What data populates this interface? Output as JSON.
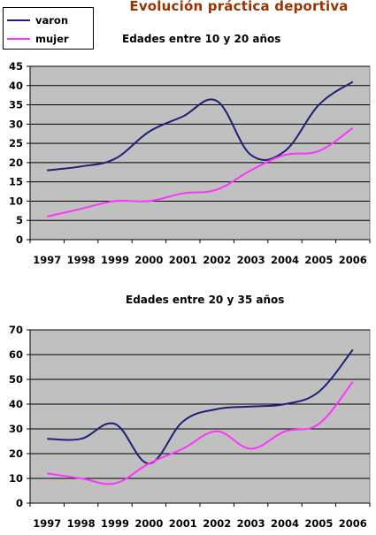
{
  "title": "Evolución práctica deportiva",
  "legend": [
    {
      "name": "varon",
      "color": "#1f1f7a"
    },
    {
      "name": "mujer",
      "color": "#ff33ff"
    }
  ],
  "chart_data": [
    {
      "type": "line",
      "title": "Edades entre 10 y 20 años",
      "categories": [
        "1997",
        "1998",
        "1999",
        "2000",
        "2001",
        "2002",
        "2003",
        "2004",
        "2005",
        "2006"
      ],
      "ylim": [
        0,
        45
      ],
      "yticks": [
        0,
        5,
        10,
        15,
        20,
        25,
        30,
        35,
        40,
        45
      ],
      "grid": true,
      "series": [
        {
          "name": "varon",
          "color": "#1f1f7a",
          "values": [
            18,
            19,
            21,
            28,
            32,
            36,
            22,
            23,
            35,
            41
          ]
        },
        {
          "name": "mujer",
          "color": "#ff33ff",
          "values": [
            6,
            8,
            10,
            10,
            12,
            13,
            18,
            22,
            23,
            29
          ]
        }
      ]
    },
    {
      "type": "line",
      "title": "Edades entre 20 y 35 años",
      "categories": [
        "1997",
        "1998",
        "1999",
        "2000",
        "2001",
        "2002",
        "2003",
        "2004",
        "2005",
        "2006"
      ],
      "ylim": [
        0,
        70
      ],
      "yticks": [
        0,
        10,
        20,
        30,
        40,
        50,
        60,
        70
      ],
      "grid": true,
      "series": [
        {
          "name": "varon",
          "color": "#1f1f7a",
          "values": [
            26,
            26,
            32,
            16,
            33,
            38,
            39,
            40,
            45,
            62
          ]
        },
        {
          "name": "mujer",
          "color": "#ff33ff",
          "values": [
            12,
            10,
            8,
            16,
            22,
            29,
            22,
            29,
            32,
            49
          ]
        }
      ]
    }
  ]
}
